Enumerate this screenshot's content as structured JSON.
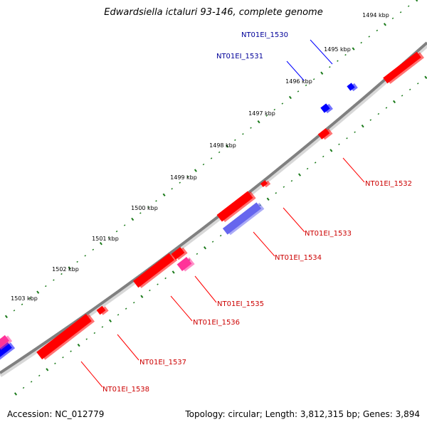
{
  "title": "Edwardsiella ictaluri 93-146, complete genome",
  "footer": {
    "accession": "Accession: NC_012779",
    "summary": "Topology: circular; Length: 3,812,315 bp; Genes: 3,894"
  },
  "colors": {
    "backbone": "#808080",
    "tick": "#1a7a1a",
    "forward_gene": "#ff0000",
    "reverse_gene": "#0000ff",
    "rna_gene": "#ff3399",
    "other_feature": "#6666ee",
    "forward_label": "#cc0000",
    "reverse_label": "#000099"
  },
  "ticks": {
    "unit": "kbp",
    "labels": [
      "1494 kbp",
      "1495 kbp",
      "1496 kbp",
      "1497 kbp",
      "1498 kbp",
      "1499 kbp",
      "1500 kbp",
      "1501 kbp",
      "1502 kbp",
      "1503 kbp"
    ]
  },
  "genes": [
    {
      "id": "NT01EI_1530",
      "strand": "reverse",
      "type": "gene"
    },
    {
      "id": "NT01EI_1531",
      "strand": "reverse",
      "type": "gene"
    },
    {
      "id": "NT01EI_1532",
      "strand": "forward",
      "type": "gene"
    },
    {
      "id": "NT01EI_1533",
      "strand": "forward",
      "type": "gene"
    },
    {
      "id": "NT01EI_1534",
      "strand": "forward",
      "type": "other"
    },
    {
      "id": "NT01EI_1535",
      "strand": "forward",
      "type": "rna"
    },
    {
      "id": "NT01EI_1536",
      "strand": "forward",
      "type": "gene"
    },
    {
      "id": "NT01EI_1537",
      "strand": "forward",
      "type": "gene"
    },
    {
      "id": "NT01EI_1538",
      "strand": "forward",
      "type": "gene"
    }
  ]
}
